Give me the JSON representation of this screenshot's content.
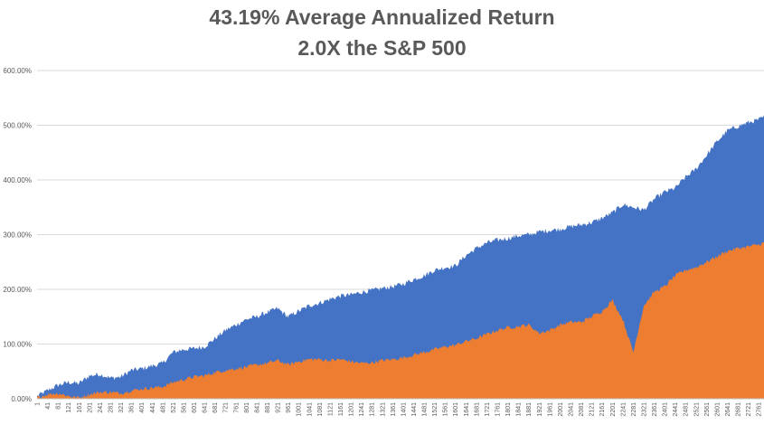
{
  "chart_data": {
    "type": "area",
    "title": "43.19% Average Annualized Return",
    "subtitle": "2.0X the S&P 500",
    "xlabel": "",
    "ylabel": "",
    "ylim": [
      0,
      600
    ],
    "xlim": [
      1,
      2781
    ],
    "y_ticks": [
      "0.00%",
      "100.00%",
      "200.00%",
      "300.00%",
      "400.00%",
      "500.00%",
      "600.00%"
    ],
    "y_tick_values": [
      0,
      100,
      200,
      300,
      400,
      500,
      600
    ],
    "x_ticks": [
      1,
      41,
      81,
      121,
      161,
      201,
      241,
      281,
      321,
      361,
      401,
      441,
      481,
      521,
      561,
      601,
      641,
      681,
      721,
      761,
      801,
      841,
      881,
      921,
      961,
      1001,
      1041,
      1081,
      1121,
      1161,
      1201,
      1241,
      1281,
      1321,
      1361,
      1401,
      1441,
      1481,
      1521,
      1561,
      1601,
      1641,
      1681,
      1721,
      1761,
      1801,
      1841,
      1881,
      1921,
      1961,
      2001,
      2041,
      2081,
      2121,
      2161,
      2201,
      2241,
      2281,
      2321,
      2361,
      2401,
      2441,
      2481,
      2521,
      2561,
      2601,
      2641,
      2681,
      2721,
      2761
    ],
    "grid": true,
    "legend": "none",
    "series": [
      {
        "color": "#4472c4",
        "x": [
          1,
          41,
          81,
          121,
          161,
          201,
          241,
          281,
          321,
          361,
          401,
          441,
          481,
          521,
          561,
          601,
          641,
          681,
          721,
          761,
          801,
          841,
          881,
          921,
          961,
          1001,
          1041,
          1081,
          1121,
          1161,
          1201,
          1241,
          1281,
          1321,
          1361,
          1401,
          1441,
          1481,
          1521,
          1561,
          1601,
          1641,
          1681,
          1721,
          1761,
          1801,
          1841,
          1881,
          1921,
          1961,
          2001,
          2041,
          2081,
          2121,
          2161,
          2201,
          2241,
          2281,
          2321,
          2361,
          2401,
          2441,
          2481,
          2521,
          2561,
          2601,
          2641,
          2681,
          2721,
          2761,
          2781
        ],
        "values": [
          5,
          15,
          25,
          30,
          28,
          42,
          45,
          38,
          40,
          52,
          55,
          60,
          65,
          85,
          90,
          92,
          95,
          110,
          125,
          135,
          145,
          150,
          158,
          165,
          150,
          160,
          170,
          175,
          182,
          188,
          190,
          195,
          198,
          202,
          205,
          210,
          218,
          225,
          235,
          240,
          243,
          262,
          275,
          285,
          290,
          293,
          298,
          300,
          305,
          308,
          310,
          315,
          318,
          322,
          330,
          340,
          355,
          350,
          345,
          365,
          378,
          385,
          405,
          420,
          445,
          470,
          490,
          498,
          505,
          510,
          515
        ]
      },
      {
        "color": "#ed7d31",
        "x": [
          1,
          41,
          81,
          121,
          161,
          201,
          241,
          281,
          321,
          361,
          401,
          441,
          481,
          521,
          561,
          601,
          641,
          681,
          721,
          761,
          801,
          841,
          881,
          921,
          961,
          1001,
          1041,
          1081,
          1121,
          1161,
          1201,
          1241,
          1281,
          1321,
          1361,
          1401,
          1441,
          1481,
          1521,
          1561,
          1601,
          1641,
          1681,
          1721,
          1761,
          1801,
          1841,
          1881,
          1921,
          1961,
          2001,
          2041,
          2081,
          2121,
          2161,
          2201,
          2241,
          2281,
          2321,
          2361,
          2401,
          2441,
          2481,
          2521,
          2561,
          2601,
          2641,
          2681,
          2721,
          2761,
          2781
        ],
        "values": [
          2,
          8,
          10,
          5,
          2,
          8,
          12,
          12,
          10,
          15,
          18,
          20,
          22,
          30,
          35,
          40,
          42,
          48,
          52,
          55,
          58,
          62,
          65,
          70,
          62,
          68,
          72,
          72,
          70,
          72,
          68,
          65,
          66,
          70,
          72,
          75,
          80,
          85,
          90,
          95,
          98,
          105,
          110,
          118,
          125,
          130,
          132,
          135,
          120,
          125,
          135,
          140,
          140,
          150,
          160,
          180,
          145,
          85,
          170,
          195,
          205,
          225,
          235,
          240,
          250,
          260,
          270,
          275,
          278,
          282,
          285
        ]
      }
    ]
  }
}
